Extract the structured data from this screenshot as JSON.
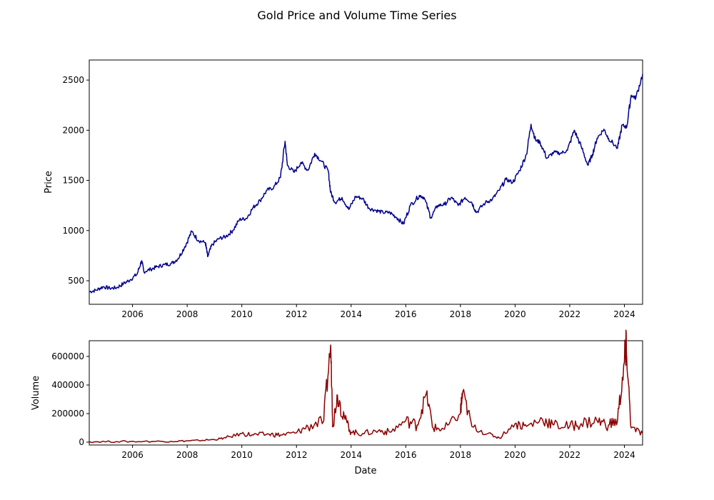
{
  "chart_data": [
    {
      "type": "line",
      "title": "Gold Price and Volume Time Series",
      "xlabel": "",
      "ylabel": "Price",
      "x_ticks": [
        "2006",
        "2008",
        "2010",
        "2012",
        "2014",
        "2016",
        "2018",
        "2020",
        "2022",
        "2024"
      ],
      "y_ticks": [
        "500",
        "1000",
        "1500",
        "2000",
        "2500"
      ],
      "xlim": [
        "2004-06",
        "2024-09"
      ],
      "ylim": [
        265,
        2700
      ],
      "grid": false,
      "color": "#00008b",
      "series": [
        {
          "x": [
            "2004-06",
            "2004-09",
            "2004-12",
            "2005-03",
            "2005-06",
            "2005-09",
            "2005-12",
            "2006-03",
            "2006-05",
            "2006-06",
            "2006-09",
            "2006-12",
            "2007-03",
            "2007-06",
            "2007-09",
            "2007-12",
            "2008-03",
            "2008-06",
            "2008-09",
            "2008-10",
            "2008-12",
            "2009-03",
            "2009-06",
            "2009-09",
            "2009-12",
            "2010-03",
            "2010-06",
            "2010-09",
            "2010-12",
            "2011-03",
            "2011-06",
            "2011-08",
            "2011-09",
            "2011-12",
            "2012-03",
            "2012-06",
            "2012-09",
            "2012-12",
            "2013-03",
            "2013-04",
            "2013-06",
            "2013-09",
            "2013-12",
            "2014-03",
            "2014-06",
            "2014-09",
            "2014-12",
            "2015-03",
            "2015-06",
            "2015-09",
            "2015-12",
            "2016-03",
            "2016-07",
            "2016-09",
            "2016-12",
            "2017-03",
            "2017-06",
            "2017-09",
            "2017-12",
            "2018-03",
            "2018-06",
            "2018-08",
            "2018-12",
            "2019-03",
            "2019-06",
            "2019-09",
            "2019-12",
            "2020-03",
            "2020-06",
            "2020-08",
            "2020-10",
            "2020-12",
            "2021-03",
            "2021-06",
            "2021-09",
            "2021-12",
            "2022-03",
            "2022-06",
            "2022-09",
            "2022-11",
            "2023-01",
            "2023-04",
            "2023-06",
            "2023-10",
            "2023-12",
            "2024-02",
            "2024-04",
            "2024-06",
            "2024-09"
          ],
          "values": [
            390,
            405,
            440,
            425,
            430,
            470,
            510,
            565,
            700,
            590,
            615,
            640,
            660,
            670,
            720,
            840,
            990,
            900,
            880,
            740,
            860,
            920,
            940,
            1000,
            1110,
            1120,
            1230,
            1300,
            1400,
            1430,
            1530,
            1890,
            1650,
            1580,
            1680,
            1600,
            1770,
            1690,
            1590,
            1380,
            1280,
            1330,
            1210,
            1340,
            1320,
            1220,
            1200,
            1180,
            1180,
            1130,
            1065,
            1250,
            1350,
            1330,
            1130,
            1250,
            1260,
            1330,
            1250,
            1330,
            1280,
            1180,
            1280,
            1310,
            1400,
            1510,
            1480,
            1600,
            1760,
            2060,
            1900,
            1880,
            1720,
            1780,
            1770,
            1800,
            2000,
            1840,
            1650,
            1760,
            1920,
            2010,
            1920,
            1820,
            2050,
            2030,
            2350,
            2320,
            2560
          ]
        }
      ]
    },
    {
      "type": "line",
      "title": "",
      "xlabel": "Date",
      "ylabel": "Volume",
      "x_ticks": [
        "2006",
        "2008",
        "2010",
        "2012",
        "2014",
        "2016",
        "2018",
        "2020",
        "2022",
        "2024"
      ],
      "y_ticks": [
        "0",
        "200000",
        "400000",
        "600000"
      ],
      "xlim": [
        "2004-06",
        "2024-09"
      ],
      "ylim": [
        -20000,
        710000
      ],
      "grid": false,
      "color": "#8b0000",
      "series": [
        {
          "x": [
            "2004-06",
            "2005-06",
            "2006-06",
            "2007-06",
            "2008-01",
            "2008-06",
            "2009-01",
            "2009-06",
            "2010-01",
            "2010-06",
            "2011-01",
            "2011-06",
            "2012-01",
            "2012-06",
            "2013-01",
            "2013-04",
            "2013-05",
            "2013-07",
            "2013-10",
            "2014-01",
            "2014-06",
            "2015-01",
            "2015-06",
            "2016-01",
            "2016-06",
            "2016-10",
            "2017-01",
            "2017-06",
            "2018-01",
            "2018-02",
            "2018-06",
            "2019-01",
            "2019-06",
            "2020-01",
            "2020-06",
            "2021-01",
            "2021-06",
            "2022-01",
            "2022-06",
            "2023-01",
            "2023-06",
            "2023-10",
            "2024-01",
            "2024-02",
            "2024-04",
            "2024-09"
          ],
          "values": [
            3000,
            4000,
            5000,
            6000,
            9000,
            12000,
            18000,
            30000,
            60000,
            50000,
            55000,
            50000,
            65000,
            110000,
            150000,
            680000,
            120000,
            330000,
            180000,
            70000,
            60000,
            80000,
            70000,
            150000,
            120000,
            340000,
            100000,
            90000,
            200000,
            350000,
            110000,
            60000,
            30000,
            130000,
            110000,
            160000,
            120000,
            110000,
            130000,
            150000,
            120000,
            150000,
            560000,
            600000,
            100000,
            60000
          ]
        }
      ]
    }
  ]
}
